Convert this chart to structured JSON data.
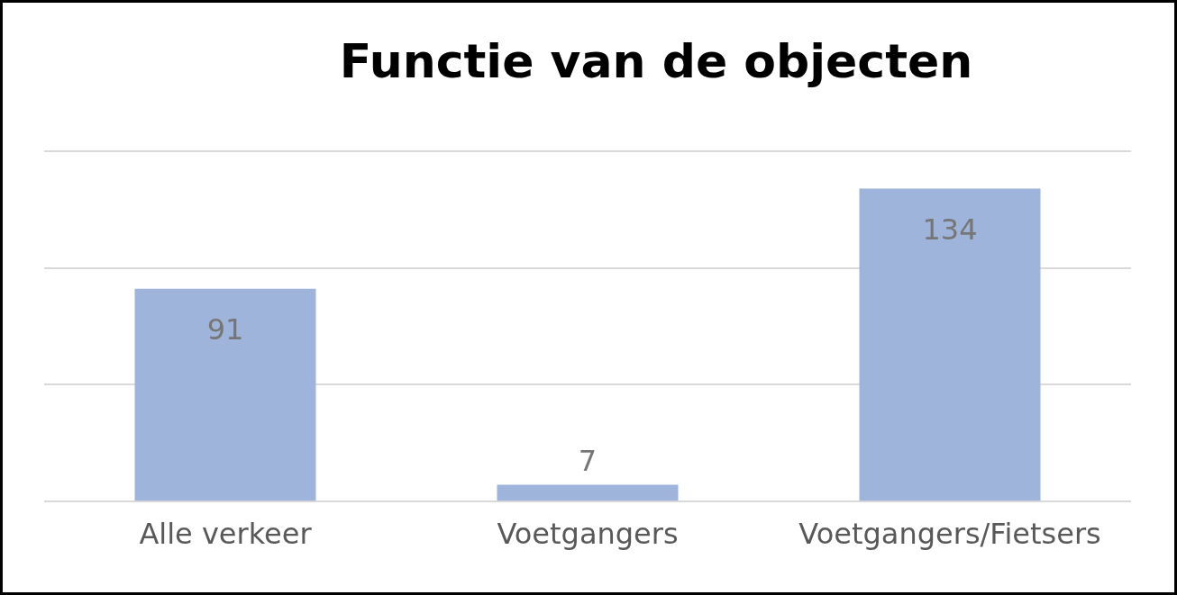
{
  "chart_data": {
    "type": "bar",
    "title": "Functie van de objecten",
    "categories": [
      "Alle verkeer",
      "Voetgangers",
      "Voetgangers/Fietsers"
    ],
    "values": [
      91,
      7,
      134
    ],
    "color": "#9fb4da",
    "ylim": [
      0,
      150
    ],
    "yticks": [
      {
        "value": 0,
        "label": null
      },
      {
        "value": 50,
        "label": null
      },
      {
        "value": 100,
        "label": null
      },
      {
        "value": 150,
        "label": null
      }
    ],
    "tick_labels": "x",
    "grid": "y",
    "data_labels": true,
    "legend": false
  }
}
